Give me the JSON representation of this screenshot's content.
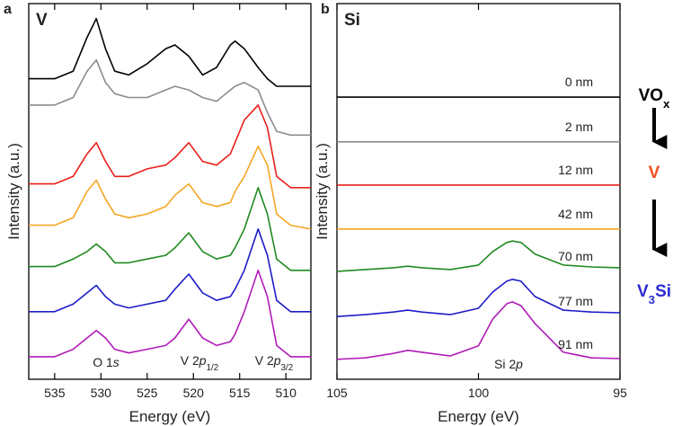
{
  "chart_data": [
    {
      "type": "line",
      "panel": "a",
      "title": "V",
      "xlabel": "Energy (eV)",
      "ylabel": "Intensity (a.u.)",
      "xlim": [
        537.8,
        507.3
      ],
      "xticks": [
        535,
        530,
        525,
        520,
        515,
        510
      ],
      "ylim": [
        0,
        100
      ],
      "x": [
        537.8,
        535,
        533,
        531.5,
        530.5,
        529.5,
        528.5,
        527,
        525,
        523,
        522,
        520.5,
        519,
        517.5,
        516,
        515.5,
        514.5,
        513,
        512,
        511,
        509.5,
        507.3
      ],
      "series": [
        {
          "color": "#000000",
          "values": [
            80,
            80,
            82,
            91,
            96,
            88,
            82,
            81,
            84,
            88,
            89,
            86,
            81,
            83,
            89,
            90,
            88,
            83,
            80,
            78,
            78,
            78
          ]
        },
        {
          "color": "#8c8c8c",
          "values": [
            73,
            73,
            75,
            82,
            85,
            79,
            76,
            75,
            75,
            77,
            78,
            77,
            75,
            74,
            77,
            78,
            79,
            77,
            71,
            66,
            65,
            65
          ]
        },
        {
          "color": "#e8201c",
          "values": [
            52,
            52,
            54,
            60,
            63,
            58,
            54,
            54,
            56,
            57,
            59,
            63,
            58,
            57,
            60,
            63,
            69,
            73,
            67,
            54,
            51,
            51
          ]
        },
        {
          "color": "#f5a623",
          "values": [
            41,
            41,
            43,
            50,
            53,
            48,
            44,
            43,
            44,
            46,
            49,
            52,
            47,
            46,
            47,
            50,
            54,
            62,
            57,
            44,
            41,
            40
          ]
        },
        {
          "color": "#1f8a1f",
          "values": [
            30,
            30,
            32,
            34,
            36,
            34,
            31,
            31,
            32,
            33,
            35,
            39,
            34,
            32,
            33,
            35,
            40,
            51,
            44,
            32,
            29,
            29
          ]
        },
        {
          "color": "#1c1cc8",
          "values": [
            18,
            18,
            20,
            23,
            25,
            22,
            20,
            19,
            20,
            21,
            24,
            28,
            23,
            21,
            22,
            24,
            29,
            40,
            33,
            21,
            18,
            18
          ]
        },
        {
          "color": "#b01cb8",
          "values": [
            6,
            6,
            8,
            11,
            13,
            11,
            8,
            7,
            8,
            9,
            11,
            16,
            11,
            9,
            10,
            12,
            18,
            29,
            22,
            9,
            6,
            6
          ]
        }
      ],
      "annotations": [
        {
          "parts": [
            {
              "text": "O 1",
              "style": "normal"
            },
            {
              "text": "s",
              "style": "italic"
            }
          ]
        },
        {
          "parts": [
            {
              "text": "V 2",
              "style": "normal"
            },
            {
              "text": "p",
              "style": "italic"
            },
            {
              "text": "1/2",
              "style": "sub"
            }
          ]
        },
        {
          "parts": [
            {
              "text": "V 2",
              "style": "normal"
            },
            {
              "text": "p",
              "style": "italic"
            },
            {
              "text": "3/2",
              "style": "sub"
            }
          ]
        }
      ]
    },
    {
      "type": "line",
      "panel": "b",
      "title": "Si",
      "xlabel": "Energy (eV)",
      "ylabel": "Intensity (a.u.)",
      "xlim": [
        105,
        95
      ],
      "xticks": [
        105,
        100,
        95
      ],
      "ylim": [
        0,
        100
      ],
      "x": [
        105,
        104,
        103,
        102.5,
        102,
        101,
        100,
        99.5,
        99,
        98.8,
        98.5,
        98,
        97,
        96,
        95
      ],
      "series": [
        {
          "name": "0 nm",
          "color": "#000000",
          "values": [
            75.1,
            75.1,
            75.1,
            75.1,
            75.1,
            75.1,
            75.1,
            75.1,
            75.1,
            75.1,
            75.1,
            75.1,
            75.1,
            75.1,
            75.1
          ]
        },
        {
          "name": "2 nm",
          "color": "#8c8c8c",
          "values": [
            63.2,
            63.2,
            63.2,
            63.2,
            63.2,
            63.2,
            63.2,
            63.2,
            63.2,
            63.2,
            63.2,
            63.2,
            63.2,
            63.2,
            63.2
          ]
        },
        {
          "name": "12 nm",
          "color": "#e8201c",
          "values": [
            51.7,
            51.7,
            51.7,
            51.7,
            51.7,
            51.7,
            51.7,
            51.7,
            51.7,
            51.7,
            51.7,
            51.7,
            51.7,
            51.7,
            51.7
          ]
        },
        {
          "name": "42 nm",
          "color": "#f5a623",
          "values": [
            40.0,
            40.0,
            40.0,
            40.0,
            40.0,
            40.0,
            40.0,
            40.0,
            40.0,
            40.0,
            40.0,
            40.0,
            40.0,
            40.0,
            40.0
          ]
        },
        {
          "name": "70 nm",
          "color": "#1f8a1f",
          "values": [
            28.7,
            29.2,
            29.7,
            30.1,
            29.7,
            29.2,
            30.4,
            34.0,
            36.4,
            36.8,
            36.4,
            33.3,
            30.4,
            29.9,
            29.7
          ]
        },
        {
          "name": "77 nm",
          "color": "#1c1cc8",
          "values": [
            16.7,
            17.2,
            17.9,
            18.4,
            17.9,
            17.2,
            18.9,
            23.2,
            26.1,
            26.6,
            26.1,
            22.0,
            18.4,
            17.9,
            17.7
          ]
        },
        {
          "name": "91 nm",
          "color": "#b01cb8",
          "values": [
            5.3,
            5.7,
            6.9,
            7.7,
            7.2,
            6.2,
            8.9,
            16.0,
            20.1,
            20.6,
            19.6,
            14.8,
            7.2,
            5.7,
            5.5
          ]
        }
      ],
      "annotations": [
        {
          "parts": [
            {
              "text": "Si 2",
              "style": "normal"
            },
            {
              "text": "p",
              "style": "italic"
            }
          ]
        }
      ]
    }
  ],
  "process_steps": [
    {
      "color": "#000000",
      "parts": [
        {
          "text": "VO",
          "style": "normal"
        },
        {
          "text": "x",
          "style": "sub"
        }
      ]
    },
    {
      "color": "#f04e23",
      "parts": [
        {
          "text": "V",
          "style": "normal"
        }
      ]
    },
    {
      "color": "#2b2bd0",
      "parts": [
        {
          "text": "V",
          "style": "normal"
        },
        {
          "text": "3",
          "style": "sub"
        },
        {
          "text": "Si",
          "style": "normal"
        }
      ]
    }
  ]
}
